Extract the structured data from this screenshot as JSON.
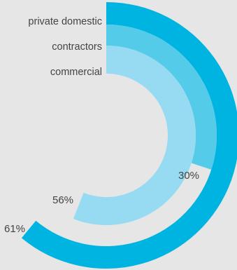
{
  "chart_data": {
    "type": "radial-bar",
    "title": "",
    "series": [
      {
        "name": "private domestic",
        "value": 61,
        "label": "61%",
        "color": "#00b4e1"
      },
      {
        "name": "contractors",
        "value": 30,
        "label": "30%",
        "color": "#55cbea"
      },
      {
        "name": "commercial",
        "value": 56,
        "label": "56%",
        "color": "#97dbf2"
      }
    ],
    "scale_max": 100,
    "start_angle": "12 o'clock",
    "direction": "clockwise",
    "legend_placement": "left of bars, at start of each arc"
  },
  "colors": {
    "background": "#e6e6e6",
    "text": "#444444"
  }
}
